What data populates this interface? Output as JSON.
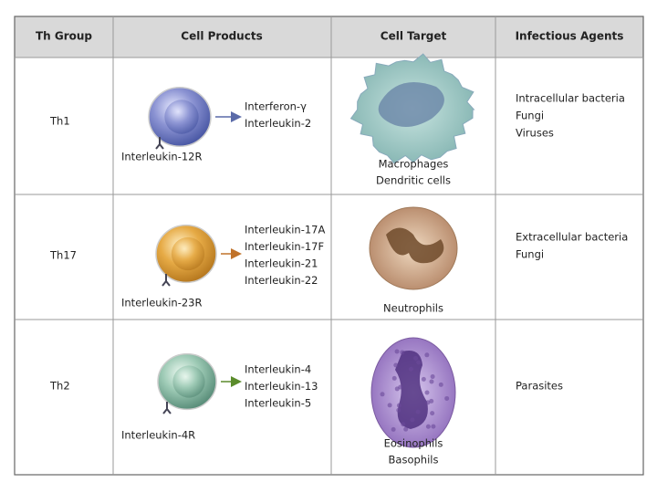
{
  "table": {
    "headers": [
      "Th Group",
      "Cell Products",
      "Cell Target",
      "Infectious Agents"
    ],
    "rows": [
      {
        "group": "Th1",
        "products": [
          "Interferon-γ",
          "Interleukin-2"
        ],
        "receptor": "Interleukin-12R",
        "targets": [
          "Macrophages",
          "Dendritic cells"
        ],
        "agents": [
          "Intracellular bacteria",
          "Fungi",
          "Viruses"
        ]
      },
      {
        "group": "Th17",
        "products": [
          "Interleukin-17A",
          "Interleukin-17F",
          "Interleukin-21",
          "Interleukin-22"
        ],
        "receptor": "Interleukin-23R",
        "targets": [
          "Neutrophils"
        ],
        "agents": [
          "Extracellular bacteria",
          "Fungi"
        ]
      },
      {
        "group": "Th2",
        "products": [
          "Interleukin-4",
          "Interleukin-13",
          "Interleukin-5"
        ],
        "receptor": "Interleukin-4R",
        "targets": [
          "Eosinophils",
          "Basophils"
        ],
        "agents": [
          "Parasites"
        ]
      }
    ]
  }
}
